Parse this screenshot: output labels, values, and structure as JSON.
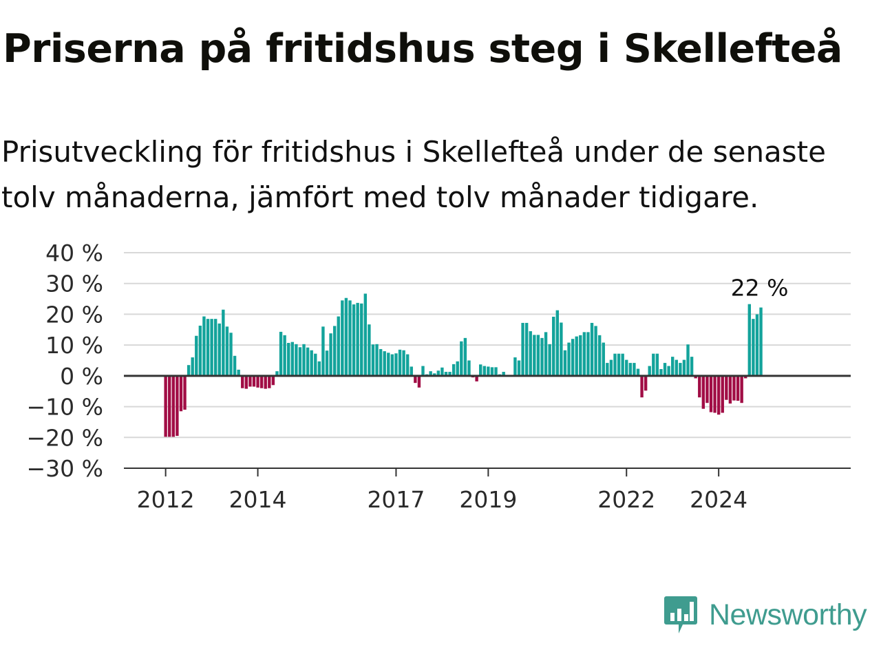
{
  "header": {
    "title": "Priserna på fritidshus steg i Skellefteå",
    "subtitle": "Prisutveckling för fritidshus i Skellefteå under de senaste tolv månaderna, jämfört med tolv månader tidigare."
  },
  "brand": {
    "name": "Newsworthy",
    "icon": "newsworthy-logo-icon",
    "color": "#3f9c8f"
  },
  "chart_data": {
    "type": "bar",
    "title": "Priserna på fritidshus steg i Skellefteå",
    "subtitle": "Prisutveckling för fritidshus i Skellefteå under de senaste tolv månaderna, jämfört med tolv månader tidigare.",
    "xlabel": "",
    "ylabel": "",
    "ylim": [
      -30,
      40
    ],
    "yticks": [
      40,
      30,
      20,
      10,
      0,
      -10,
      -20,
      -30
    ],
    "ytick_labels": [
      "40 %",
      "30 %",
      "20 %",
      "10 %",
      "0 %",
      "−10 %",
      "−20 %",
      "−30 %"
    ],
    "xtick_labels": [
      {
        "label": "2012",
        "date": "2012-01"
      },
      {
        "label": "2014",
        "date": "2014-01"
      },
      {
        "label": "2017",
        "date": "2017-01"
      },
      {
        "label": "2019",
        "date": "2019-01"
      },
      {
        "label": "2022",
        "date": "2022-01"
      },
      {
        "label": "2024",
        "date": "2024-01"
      }
    ],
    "first_month": "2011-05",
    "last_month": "2024-12",
    "values": [
      null,
      null,
      null,
      null,
      null,
      null,
      null,
      null,
      -19.8,
      -19.8,
      -19.8,
      -19.5,
      -11.5,
      -11,
      3.5,
      6,
      13,
      16.3,
      19.3,
      18.5,
      18.5,
      18.5,
      17,
      21.5,
      16,
      14,
      6.5,
      2,
      -4,
      -4.2,
      -3.5,
      -3.5,
      -3.8,
      -4,
      -4.2,
      -4,
      -3,
      1.5,
      14.3,
      13.2,
      10.7,
      11,
      10.3,
      9.3,
      10.3,
      9.2,
      8.3,
      7.2,
      4.7,
      16,
      8.2,
      13.8,
      16.2,
      19.3,
      24.5,
      25.3,
      24.5,
      23.2,
      23.7,
      23.5,
      26.7,
      16.7,
      10.2,
      10.3,
      8.7,
      8,
      7.5,
      7,
      7.3,
      8.5,
      8.3,
      7,
      3,
      -2.3,
      -3.8,
      3.2,
      0.5,
      1.5,
      0.8,
      1.7,
      2.7,
      1.3,
      1.3,
      3.8,
      4.7,
      11.2,
      12.3,
      5,
      -0.5,
      -1.8,
      3.7,
      3.2,
      3,
      2.8,
      2.8,
      0.5,
      1.3,
      0,
      0,
      6,
      5,
      17.2,
      17.2,
      14.5,
      13.3,
      13.3,
      12.3,
      14.2,
      10.3,
      19.2,
      21.3,
      17.3,
      8.3,
      10.8,
      12,
      12.8,
      13.2,
      14.2,
      14.2,
      17.2,
      16.2,
      13.2,
      10.8,
      4.2,
      5.2,
      7.2,
      7.2,
      7.2,
      5.2,
      4.2,
      4.2,
      2.3,
      -7,
      -4.8,
      3.2,
      7.2,
      7.2,
      2.2,
      4.2,
      3.2,
      6.2,
      5.2,
      4.2,
      5.2,
      10.2,
      6.2,
      -0.8,
      -7,
      -10.7,
      -8.8,
      -11.8,
      -12,
      -12.6,
      -12,
      -7.8,
      -9,
      -8,
      -8.1,
      -8.8,
      -0.8,
      23.3,
      18.5,
      20,
      22.2
    ],
    "colors": {
      "positive": "#13a39b",
      "negative": "#a10d45",
      "zero_line": "#333333",
      "grid": "#d8d8d8"
    },
    "grid": true,
    "annotations": [
      {
        "text": "22 %",
        "date": "2024-12",
        "value": 22.2
      }
    ]
  }
}
